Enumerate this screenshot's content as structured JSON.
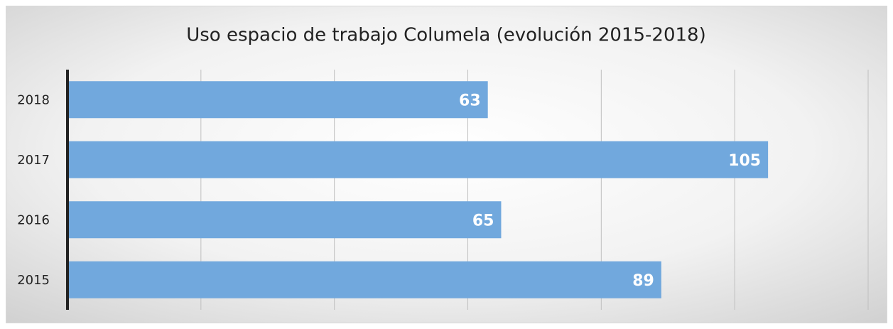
{
  "chart_data": {
    "type": "bar",
    "orientation": "horizontal",
    "title": "Uso espacio de trabajo Columela (evolución 2015-2018)",
    "categories": [
      "2018",
      "2017",
      "2016",
      "2015"
    ],
    "values": [
      63,
      105,
      65,
      89
    ],
    "color": "#71a8dd",
    "xlim": [
      0,
      120
    ],
    "xticks": [
      0,
      20,
      40,
      60,
      80,
      100,
      120
    ],
    "grid": true
  }
}
